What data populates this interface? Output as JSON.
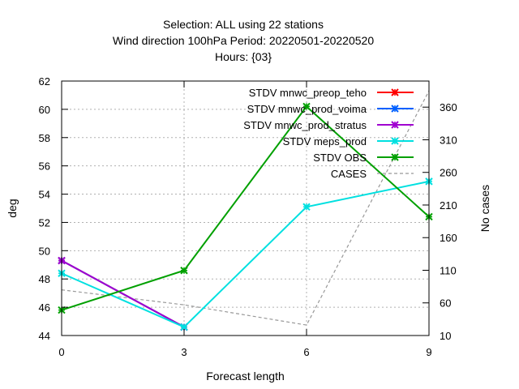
{
  "chart_data": {
    "type": "line",
    "title_lines": [
      "Selection: ALL using    22 stations",
      "Wind direction 100hPa   Period: 20220501-20220520",
      "Hours: {03}"
    ],
    "xlabel": "Forecast length",
    "ylabel": "deg",
    "y2label": "No cases",
    "x": [
      0,
      3,
      6,
      9
    ],
    "xticks": [
      0,
      3,
      6,
      9
    ],
    "xlim": [
      0,
      9
    ],
    "ylim": [
      44,
      62
    ],
    "yticks": [
      44,
      46,
      48,
      50,
      52,
      54,
      56,
      58,
      60,
      62
    ],
    "y2lim": [
      10,
      400
    ],
    "y2ticks": [
      10,
      60,
      110,
      160,
      210,
      260,
      310,
      360
    ],
    "grid": true,
    "legend_position": "top-right",
    "series": [
      {
        "name": "STDV mnwc_preop_teho",
        "color": "#ff0000",
        "axis": "y",
        "values": [
          49.3,
          44.6,
          null,
          null
        ]
      },
      {
        "name": "STDV mnwc_prod_voima",
        "color": "#0060ff",
        "axis": "y",
        "values": [
          49.3,
          44.6,
          null,
          null
        ]
      },
      {
        "name": "STDV mnwc_prod_stratus",
        "color": "#a000d0",
        "axis": "y",
        "values": [
          49.3,
          44.6,
          null,
          null
        ]
      },
      {
        "name": "STDV meps_prod",
        "color": "#00e0e0",
        "axis": "y",
        "values": [
          48.4,
          44.6,
          53.1,
          54.9
        ]
      },
      {
        "name": "STDV OBS",
        "color": "#00a000",
        "axis": "y",
        "values": [
          45.8,
          48.6,
          60.2,
          52.4
        ]
      },
      {
        "name": "CASES",
        "color": "#999999",
        "axis": "y2",
        "dashed": true,
        "values": [
          80,
          57,
          26,
          385
        ]
      }
    ]
  }
}
